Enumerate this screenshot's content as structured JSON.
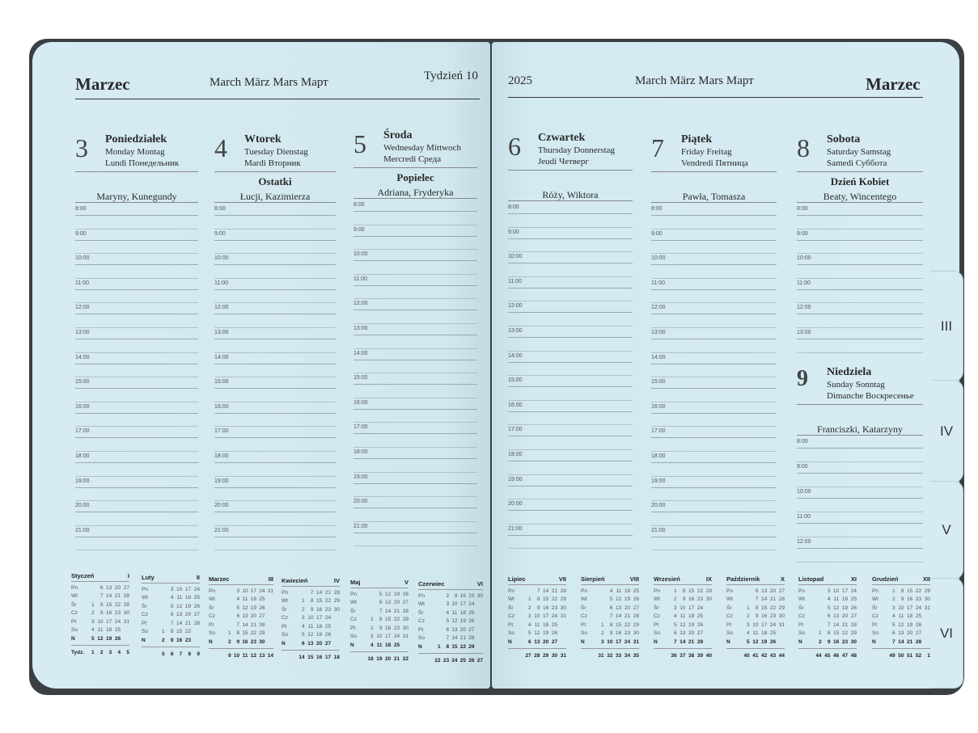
{
  "left_page": {
    "month": "Marzec",
    "subtitle": "March März Mars Март",
    "week": "Tydzień 10"
  },
  "right_page": {
    "year": "2025",
    "subtitle": "March März Mars Март",
    "month": "Marzec"
  },
  "tabs": [
    "III",
    "IV",
    "V",
    "VI"
  ],
  "days": [
    {
      "number": "3",
      "name": "Poniedziałek",
      "line1": "Monday Montag",
      "line2": "Lundi Понедельник",
      "holiday": "",
      "namedays": "Maryny, Kunegundy",
      "hours": [
        "8:00",
        "9:00",
        "10:00",
        "11:00",
        "12:00",
        "13:00",
        "14:00",
        "15:00",
        "16:00",
        "17:00",
        "18:00",
        "19:00",
        "20:00",
        "21:00"
      ]
    },
    {
      "number": "4",
      "name": "Wtorek",
      "line1": "Tuesday Dienstag",
      "line2": "Mardi Вторник",
      "holiday": "Ostatki",
      "namedays": "Łucji, Kazimierza",
      "hours": [
        "8:00",
        "9:00",
        "10:00",
        "11:00",
        "12:00",
        "13:00",
        "14:00",
        "15:00",
        "16:00",
        "17:00",
        "18:00",
        "19:00",
        "20:00",
        "21:00"
      ]
    },
    {
      "number": "5",
      "name": "Środa",
      "line1": "Wednesday Mittwoch",
      "line2": "Mercredi Среда",
      "holiday": "Popielec",
      "namedays": "Adriana, Fryderyka",
      "hours": [
        "8:00",
        "9:00",
        "10:00",
        "11:00",
        "12:00",
        "13:00",
        "14:00",
        "15:00",
        "16:00",
        "17:00",
        "18:00",
        "19:00",
        "20:00",
        "21:00"
      ]
    },
    {
      "number": "6",
      "name": "Czwartek",
      "line1": "Thursday Donnerstag",
      "line2": "Jeudi Четверг",
      "holiday": "",
      "namedays": "Róży, Wiktora",
      "hours": [
        "8:00",
        "9:00",
        "10:00",
        "11:00",
        "12:00",
        "13:00",
        "14:00",
        "15:00",
        "16:00",
        "17:00",
        "18:00",
        "19:00",
        "20:00",
        "21:00"
      ]
    },
    {
      "number": "7",
      "name": "Piątek",
      "line1": "Friday Freitag",
      "line2": "Vendredi Пятница",
      "holiday": "",
      "namedays": "Pawła, Tomasza",
      "hours": [
        "8:00",
        "9:00",
        "10:00",
        "11:00",
        "12:00",
        "13:00",
        "14:00",
        "15:00",
        "16:00",
        "17:00",
        "18:00",
        "19:00",
        "20:00",
        "21:00"
      ]
    },
    {
      "number": "8",
      "name": "Sobota",
      "line1": "Saturday Samstag",
      "line2": "Samedi Суббота",
      "holiday": "Dzień Kobiet",
      "namedays": "Beaty, Wincentego",
      "hours": [
        "8:00",
        "9:00",
        "10:00",
        "11:00",
        "12:00",
        "13:00"
      ]
    },
    {
      "number": "9",
      "name": "Niedziela",
      "line1": "Sunday Sonntag",
      "line2": "Dimanche Воскресенье",
      "holiday": "",
      "namedays": "Franciszki, Katarzyny",
      "hours": [
        "8:00",
        "9:00",
        "10:00",
        "11:00",
        "12:00"
      ]
    }
  ],
  "mini_calendar": {
    "weekdays": [
      "Pn",
      "Wt",
      "Śr",
      "Cz",
      "Pt",
      "So",
      "N"
    ],
    "weeks_label": "Tydz.",
    "months": [
      {
        "name": "Styczeń",
        "roman": "I",
        "rows": [
          "6 13 20 27",
          "7 14 21 28",
          "1 8 15 22 29",
          "2 9 16 23 30",
          "3 10 17 24 31",
          "4 11 18 25",
          "5 12 19 26"
        ],
        "weeks": "1 2 3 4 5"
      },
      {
        "name": "Luty",
        "roman": "II",
        "rows": [
          "3 10 17 24",
          "4 11 18 25",
          "5 12 19 26",
          "6 13 20 27",
          "7 14 21 28",
          "1 8 15 22",
          "2 9 16 23"
        ],
        "weeks": "5 6 7 8 9"
      },
      {
        "name": "Marzec",
        "roman": "III",
        "rows": [
          "3 10 17 24 31",
          "4 11 18 25",
          "5 12 19 26",
          "6 13 20 27",
          "7 14 21 28",
          "1 8 15 22 29",
          "2 9 16 23 30"
        ],
        "weeks": "9 10 11 12 13 14"
      },
      {
        "name": "Kwiecień",
        "roman": "IV",
        "rows": [
          "7 14 21 28",
          "1 8 15 22 29",
          "2 9 16 23 30",
          "3 10 17 24",
          "4 11 18 25",
          "5 12 19 26",
          "6 13 20 27"
        ],
        "weeks": "14 15 16 17 18"
      },
      {
        "name": "Maj",
        "roman": "V",
        "rows": [
          "5 12 19 26",
          "6 13 20 27",
          "7 14 21 28",
          "1 8 15 22 29",
          "2 9 16 23 30",
          "3 10 17 24 31",
          "4 11 18 25"
        ],
        "weeks": "18 19 20 21 22"
      },
      {
        "name": "Czerwiec",
        "roman": "VI",
        "rows": [
          "2 9 16 23 30",
          "3 10 17 24",
          "4 11 18 25",
          "5 12 19 26",
          "6 13 20 27",
          "7 14 21 28",
          "1 8 15 22 29"
        ],
        "weeks": "22 23 24 25 26 27"
      },
      {
        "name": "Lipiec",
        "roman": "VII",
        "rows": [
          "7 14 21 28",
          "1 8 15 22 29",
          "2 9 16 23 30",
          "3 10 17 24 31",
          "4 11 18 25",
          "5 12 19 26",
          "6 13 20 27"
        ],
        "weeks": "27 28 29 30 31"
      },
      {
        "name": "Sierpień",
        "roman": "VIII",
        "rows": [
          "4 11 18 25",
          "5 12 19 26",
          "6 13 20 27",
          "7 14 21 28",
          "1 8 15 22 29",
          "2 9 16 23 30",
          "3 10 17 24 31"
        ],
        "weeks": "31 32 33 34 35"
      },
      {
        "name": "Wrzesień",
        "roman": "IX",
        "rows": [
          "1 8 15 22 29",
          "2 9 16 23 30",
          "3 10 17 24",
          "4 11 18 25",
          "5 12 19 26",
          "6 13 20 27",
          "7 14 21 28"
        ],
        "weeks": "36 37 38 39 40"
      },
      {
        "name": "Październik",
        "roman": "X",
        "rows": [
          "6 13 20 27",
          "7 14 21 28",
          "1 8 15 22 29",
          "2 9 16 23 30",
          "3 10 17 24 31",
          "4 11 18 25",
          "5 12 19 26"
        ],
        "weeks": "40 41 42 43 44"
      },
      {
        "name": "Listopad",
        "roman": "XI",
        "rows": [
          "3 10 17 24",
          "4 11 18 25",
          "5 12 19 26",
          "6 13 20 27",
          "7 14 21 28",
          "1 8 15 22 29",
          "2 9 16 23 30"
        ],
        "weeks": "44 45 46 47 48"
      },
      {
        "name": "Grudzień",
        "roman": "XII",
        "rows": [
          "1 8 15 22 29",
          "2 9 16 23 30",
          "3 10 17 24 31",
          "4 11 18 25",
          "5 12 19 26",
          "6 13 20 27",
          "7 14 21 28"
        ],
        "weeks": "49 50 51 52 1"
      }
    ]
  }
}
